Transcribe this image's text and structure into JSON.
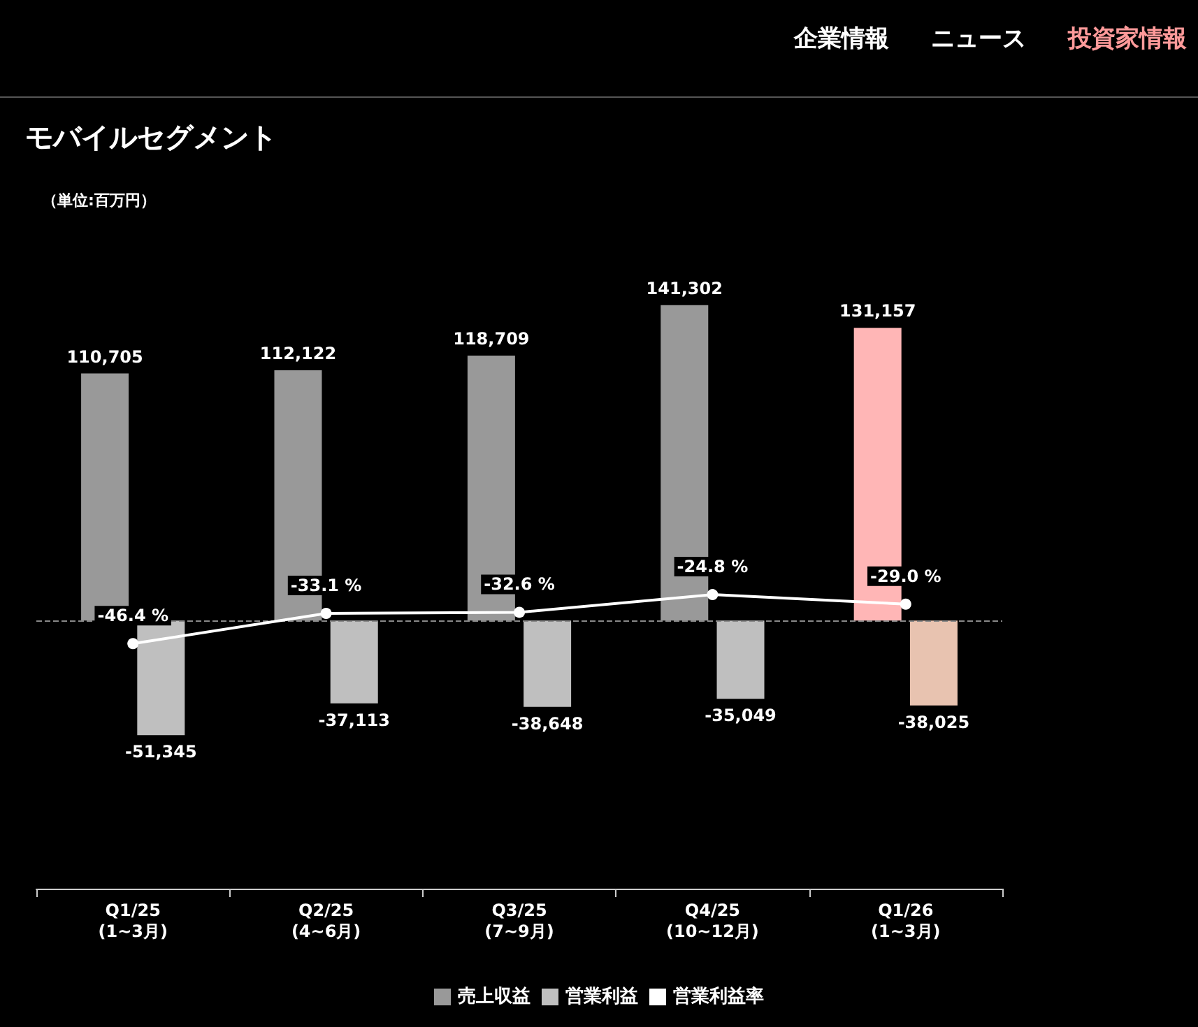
{
  "chart_data": {
    "type": "bar",
    "title": "モバイルセグメント",
    "annotations": [
      "（単位:百万円）",
      "企業情報",
      "ニュース",
      "投資家情報"
    ],
    "categories": [
      "Q1/25\n(1~3月)",
      "Q2/25\n(4~6月)",
      "Q3/25\n(7~9月)",
      "Q4/25\n(10~12月)",
      "Q1/26\n(1~3月)"
    ],
    "series": [
      {
        "name": "売上収益",
        "colors": [
          "#999999",
          "#999999",
          "#999999",
          "#999999",
          "#ffb6b6"
        ],
        "values": [
          110705,
          112122,
          118709,
          141302,
          131157
        ],
        "value_labels": [
          "110,705",
          "112,122",
          "118,709",
          "141,302",
          "131,157"
        ]
      },
      {
        "name": "営業利益",
        "colors": [
          "#bfbfbf",
          "#bfbfbf",
          "#bfbfbf",
          "#bfbfbf",
          "#e8c3b0"
        ],
        "values": [
          -51345,
          -37113,
          -38648,
          -35049,
          -38025
        ],
        "value_labels": [
          "-51,345",
          "-37,113",
          "-38,648",
          "-35,049",
          "-38,025"
        ]
      },
      {
        "name": "営業利益率",
        "type": "line",
        "axis": "y2",
        "color": "#ffffff",
        "values": [
          -46.4,
          -33.1,
          -32.6,
          -24.8,
          -29.0
        ],
        "value_labels": [
          "-46.4 %",
          "-33.1 %",
          "-32.6 %",
          "-24.8 %",
          "-29.0 %"
        ]
      }
    ],
    "ref_lines": [
      {
        "axis": "y",
        "value": 0,
        "label": null,
        "color": "#888888",
        "line_style": "dashed"
      }
    ],
    "marker": "circle",
    "legend": "bottom",
    "grid": false
  }
}
